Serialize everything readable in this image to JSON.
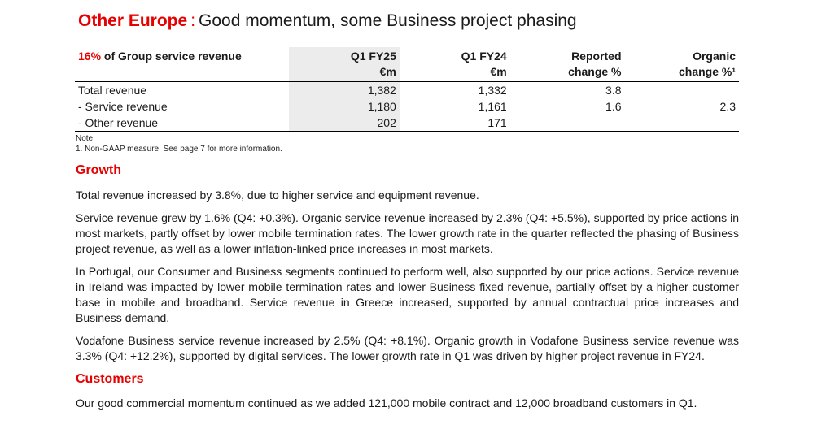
{
  "title": {
    "brand": "Other Europe",
    "separator": ":",
    "subtitle": "Good momentum, some Business project phasing"
  },
  "table": {
    "header": {
      "label_pct": "16%",
      "label_rest": " of Group service revenue",
      "col_q1_line1": "Q1 FY25",
      "col_q1_line2": "€m",
      "col_q24_line1": "Q1 FY24",
      "col_q24_line2": "€m",
      "col_rep_line1": "Reported",
      "col_rep_line2": "change %",
      "col_org_line1": "Organic",
      "col_org_line2": "change %¹"
    },
    "rows": [
      {
        "label": "Total revenue",
        "q1fy25": "1,382",
        "q1fy24": "1,332",
        "reported": "3.8",
        "organic": ""
      },
      {
        "label": "- Service revenue",
        "q1fy25": "1,180",
        "q1fy24": "1,161",
        "reported": "1.6",
        "organic": "2.3"
      },
      {
        "label": "- Other revenue",
        "q1fy25": "202",
        "q1fy24": "171",
        "reported": "",
        "organic": ""
      }
    ]
  },
  "note": {
    "heading": "Note:",
    "line1": "1.  Non-GAAP measure. See page 7 for more information."
  },
  "growth": {
    "heading": "Growth",
    "p1": "Total revenue increased by 3.8%, due to higher service and equipment revenue.",
    "p2": "Service revenue grew by 1.6% (Q4: +0.3%). Organic service revenue increased by 2.3% (Q4: +5.5%), supported by price actions in most markets, partly offset by lower mobile termination rates. The lower growth rate in the quarter reflected the phasing of Business project revenue, as well as a lower inflation-linked price increases in most markets.",
    "p3": "In Portugal, our Consumer and Business segments continued to perform well, also supported by our price actions. Service revenue in Ireland was impacted by lower mobile termination rates and lower Business fixed revenue, partially offset by a higher customer base in mobile and broadband. Service revenue in Greece increased, supported by annual contractual price increases and Business demand.",
    "p4": "Vodafone Business service revenue increased by 2.5% (Q4: +8.1%). Organic growth in Vodafone Business service revenue was 3.3% (Q4: +12.2%), supported by digital services. The lower growth rate in Q1 was driven by higher project revenue in FY24."
  },
  "customers": {
    "heading": "Customers",
    "p1": "Our good commercial momentum continued as we added 121,000 mobile contract and 12,000 broadband customers in Q1."
  }
}
